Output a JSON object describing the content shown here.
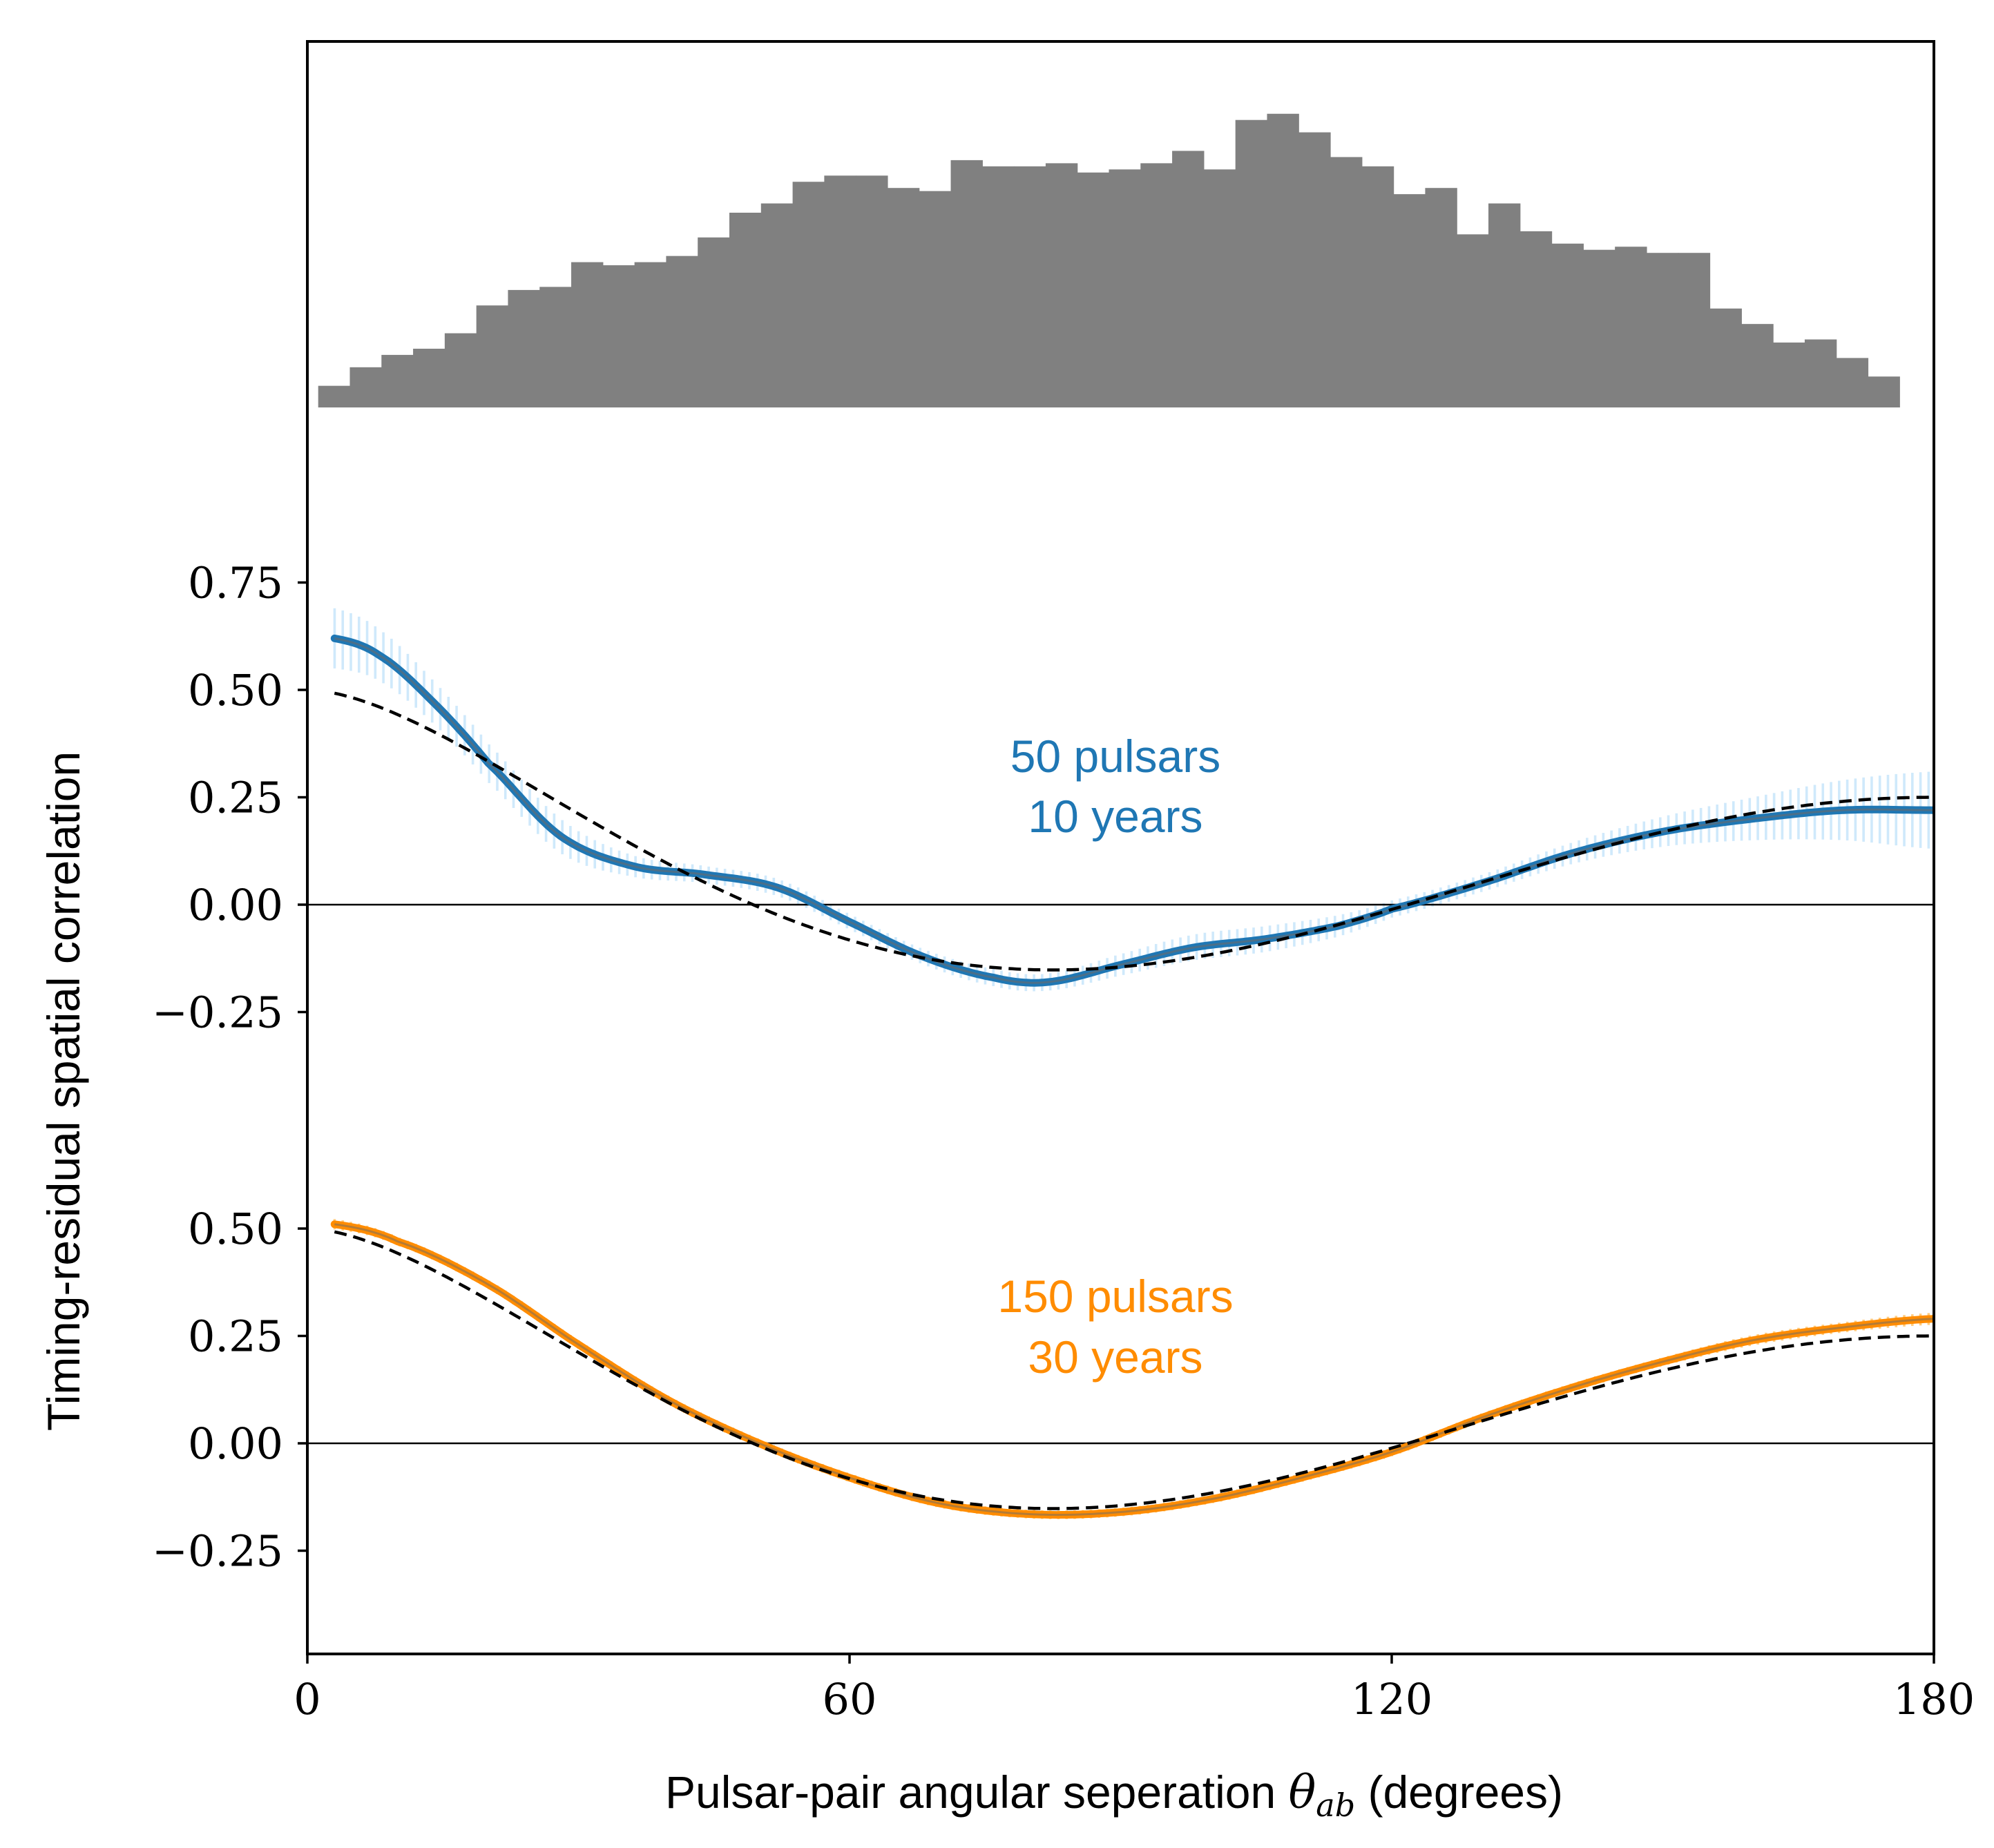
{
  "colors": {
    "blue": "#1f77b4",
    "blue_band": "#cfe9fb",
    "orange": "#ff8c00",
    "orange_band": "#ffcc80",
    "hist": "#808080",
    "hd": "#000000"
  },
  "chart_data": [
    {
      "type": "bar",
      "panel": "histogram",
      "description_visible": "pair-count histogram (no axis labels)",
      "bin_edges_deg": [
        0,
        180
      ],
      "bin_count": 50,
      "values": [
        0.07,
        0.13,
        0.17,
        0.19,
        0.24,
        0.33,
        0.38,
        0.39,
        0.47,
        0.46,
        0.47,
        0.49,
        0.55,
        0.63,
        0.66,
        0.73,
        0.75,
        0.75,
        0.71,
        0.7,
        0.8,
        0.78,
        0.78,
        0.79,
        0.76,
        0.77,
        0.79,
        0.83,
        0.77,
        0.93,
        0.95,
        0.89,
        0.81,
        0.78,
        0.69,
        0.71,
        0.56,
        0.66,
        0.57,
        0.53,
        0.51,
        0.52,
        0.5,
        0.5,
        0.32,
        0.27,
        0.21,
        0.22,
        0.16,
        0.1
      ],
      "ylim": [
        0,
        1.05
      ]
    },
    {
      "type": "line",
      "panel": "top",
      "annotation": [
        "50 pulsars",
        "10 years"
      ],
      "ylabel": "Timing-residual spatial correlation",
      "ylim": [
        -0.32,
        0.98
      ],
      "yticks": [
        "0.75",
        "0.50",
        "0.25",
        "0.00",
        "−0.25"
      ],
      "ytick_values": [
        0.75,
        0.5,
        0.25,
        0.0,
        -0.25
      ],
      "series": [
        {
          "name": "reconstructed (50 pulsars, 10 years)",
          "x": [
            3,
            8,
            14,
            20,
            28,
            36,
            44,
            52,
            60,
            68,
            76,
            82,
            90,
            98,
            106,
            114,
            120,
            130,
            140,
            150,
            160,
            170,
            180
          ],
          "y": [
            0.62,
            0.58,
            0.47,
            0.33,
            0.16,
            0.09,
            0.07,
            0.04,
            -0.04,
            -0.12,
            -0.17,
            -0.18,
            -0.14,
            -0.1,
            -0.08,
            -0.05,
            -0.01,
            0.05,
            0.12,
            0.17,
            0.2,
            0.22,
            0.22
          ],
          "band_halfwidth": [
            0.07,
            0.06,
            0.05,
            0.045,
            0.04,
            0.025,
            0.02,
            0.02,
            0.018,
            0.018,
            0.02,
            0.02,
            0.025,
            0.03,
            0.03,
            0.025,
            0.02,
            0.02,
            0.025,
            0.035,
            0.05,
            0.07,
            0.09
          ]
        },
        {
          "name": "Hellings-Downs",
          "style": "dashed",
          "function": "hellings_downs"
        }
      ],
      "hlines": [
        0
      ]
    },
    {
      "type": "line",
      "panel": "bottom",
      "annotation": [
        "150 pulsars",
        "30 years"
      ],
      "ylim": [
        -0.5,
        0.52
      ],
      "yticks": [
        "0.50",
        "0.25",
        "0.00",
        "−0.25"
      ],
      "ytick_values": [
        0.5,
        0.25,
        0.0,
        -0.25
      ],
      "series": [
        {
          "name": "reconstructed (150 pulsars, 30 years)",
          "x": [
            3,
            10,
            20,
            30,
            40,
            50,
            60,
            70,
            80,
            90,
            100,
            110,
            120,
            130,
            140,
            150,
            160,
            170,
            180
          ],
          "y": [
            0.51,
            0.47,
            0.37,
            0.23,
            0.1,
            0.0,
            -0.08,
            -0.14,
            -0.165,
            -0.16,
            -0.13,
            -0.08,
            -0.02,
            0.06,
            0.13,
            0.19,
            0.24,
            0.27,
            0.29
          ],
          "band_halfwidth": [
            0.012,
            0.01,
            0.01,
            0.01,
            0.01,
            0.01,
            0.01,
            0.01,
            0.01,
            0.01,
            0.01,
            0.01,
            0.01,
            0.01,
            0.01,
            0.01,
            0.012,
            0.012,
            0.014
          ]
        },
        {
          "name": "Hellings-Downs",
          "style": "dashed",
          "function": "hellings_downs"
        }
      ],
      "hlines": [
        0
      ]
    }
  ],
  "xaxis": {
    "label": "Pulsar-pair angular seperation ",
    "label_math": "θ",
    "label_math_sub": "ab",
    "label_suffix": " (degrees)",
    "xlim": [
      0,
      180
    ],
    "ticks": [
      "0",
      "60",
      "120",
      "180"
    ],
    "tick_values": [
      0,
      60,
      120,
      180
    ]
  }
}
